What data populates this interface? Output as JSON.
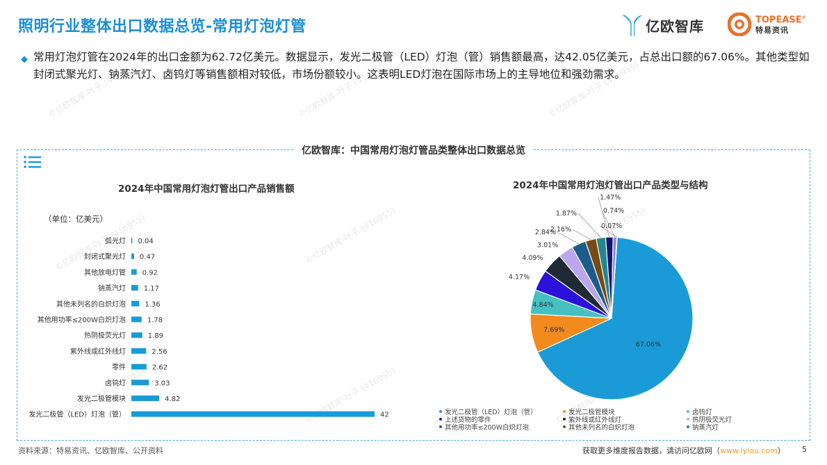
{
  "header": {
    "title": "照明行业整体出口数据总览-常用灯泡灯管",
    "logo_yiou": "亿欧智库",
    "logo_topease_en": "TOPEASE",
    "logo_topease_cn": "特易资讯"
  },
  "summary": {
    "text": "常用灯泡灯管在2024年的出口金额为62.72亿美元。数据显示，发光二极管（LED）灯泡（管）销售额最高，达42.05亿美元，占总出口额的67.06%。其他类型如封闭式聚光灯、钠蒸汽灯、卤钨灯等销售额相对较低，市场份额较小。这表明LED灯泡在国际市场上的主导地位和强劲需求。"
  },
  "panel": {
    "title": "亿欧智库：中国常用灯泡灯管品类整体出口数据总览"
  },
  "watermark": "©亿欧智库-叶子 (416955)",
  "chart_data": [
    {
      "type": "bar",
      "orientation": "horizontal",
      "title": "2024年中国常用灯泡灯管出口产品销售额",
      "unit_label": "（单位：亿美元）",
      "categories": [
        "弧光灯",
        "封闭式聚光灯",
        "其他放电灯管",
        "钠蒸汽灯",
        "其他未列名的白炽灯泡",
        "其他用功率≤200W白炽灯泡",
        "热阴极荧光灯",
        "紫外线或红外线灯",
        "零件",
        "卤钨灯",
        "发光二极管模块",
        "发光二极管（LED）灯泡（管）"
      ],
      "values": [
        0.04,
        0.47,
        0.92,
        1.17,
        1.36,
        1.78,
        1.89,
        2.56,
        2.62,
        3.03,
        4.82,
        42
      ],
      "value_labels": [
        "0.04",
        "0.47",
        "0.92",
        "1.17",
        "1.36",
        "1.78",
        "1.89",
        "2.56",
        "2.62",
        "3.03",
        "4.82",
        "42"
      ],
      "xlim": [
        0,
        42
      ],
      "color": "#1a9bd7"
    },
    {
      "type": "pie",
      "title": "2024年中国常用灯泡灯管出口产品类型与结构",
      "slices": [
        {
          "name": "发光二极管（LED）灯泡（管）",
          "value": 67.06,
          "label": "67.06%",
          "color": "#1a9bd7"
        },
        {
          "name": "发光二极管模块",
          "value": 7.69,
          "label": "7.69%",
          "color": "#f28a1d"
        },
        {
          "name": "卤钨灯",
          "value": 4.84,
          "label": "4.84%",
          "color": "#45c1c1"
        },
        {
          "name": "上述货物的零件",
          "value": 4.17,
          "label": "4.17%",
          "color": "#2a12d8"
        },
        {
          "name": "紫外线或红外线灯",
          "value": 4.09,
          "label": "4.09%",
          "color": "#1f2a35"
        },
        {
          "name": "热阴极荧光灯",
          "value": 3.01,
          "label": "3.01%",
          "color": "#b9a6ee"
        },
        {
          "name": "其他用功率≤200W白炽灯泡",
          "value": 2.84,
          "label": "2.84%",
          "color": "#1b5c8c"
        },
        {
          "name": "其他未列名的白炽灯泡",
          "value": 2.16,
          "label": "2.16%",
          "color": "#7a4a14"
        },
        {
          "name": "钠蒸汽灯",
          "value": 1.87,
          "label": "1.87%",
          "color": "#23888c"
        },
        {
          "name": "",
          "value": 1.47,
          "label": "1.47%",
          "color": "#13186e"
        },
        {
          "name": "",
          "value": 0.74,
          "label": "0.74%",
          "color": "#8e7fe8"
        },
        {
          "name": "",
          "value": 0.07,
          "label": "0.07%",
          "color": "#9ad7f0"
        }
      ]
    }
  ],
  "legend": [
    {
      "label": "发光二极管（LED）灯泡（管）",
      "color": "#1a9bd7"
    },
    {
      "label": "发光二极管模块",
      "color": "#f28a1d"
    },
    {
      "label": "卤钨灯",
      "color": "#45c1c1"
    },
    {
      "label": "上述货物的零件",
      "color": "#2a12d8"
    },
    {
      "label": "紫外线或红外线灯",
      "color": "#1f2a35"
    },
    {
      "label": "热阴极荧光灯",
      "color": "#b9a6ee"
    },
    {
      "label": "其他用功率≤200W白炽灯泡",
      "color": "#1b5c8c"
    },
    {
      "label": "其他未列名的白炽灯泡",
      "color": "#7a4a14"
    },
    {
      "label": "钠蒸汽灯",
      "color": "#23888c"
    }
  ],
  "footer": {
    "source": "资料来源：特易资讯、亿欧智库、公开资料",
    "more_prefix": "获取更多维度报告数据，请访问亿欧网（",
    "more_link": "www.iyiou.com",
    "more_suffix": "）",
    "page": "5"
  },
  "colors": {
    "accent": "#1a8fd6",
    "brand_orange": "#e8712a"
  }
}
